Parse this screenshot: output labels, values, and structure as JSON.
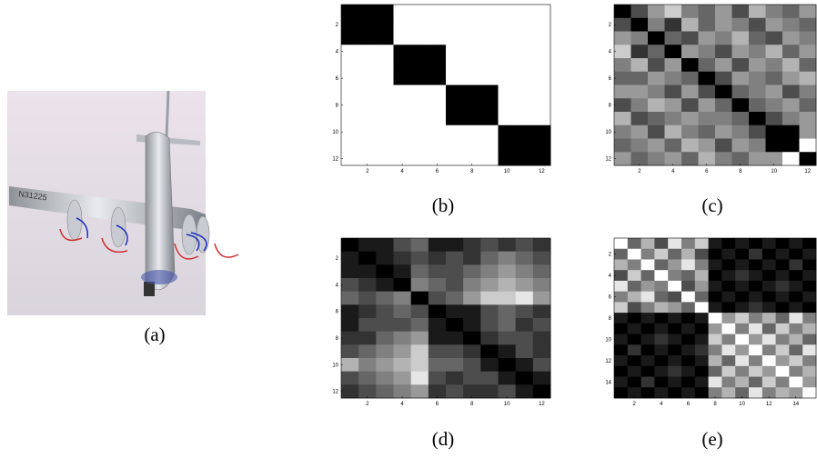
{
  "figure": {
    "colormap": "gray",
    "clim": [
      0,
      1
    ],
    "panels": [
      {
        "label": "(a)"
      },
      {
        "label": "(b)",
        "xticks": [
          2,
          4,
          6,
          8,
          10,
          12
        ],
        "yticks": [
          2,
          4,
          6,
          8,
          10,
          12
        ],
        "matrix": [
          [
            0,
            0,
            0,
            1,
            1,
            1,
            1,
            1,
            1,
            1,
            1,
            1
          ],
          [
            0,
            0,
            0,
            1,
            1,
            1,
            1,
            1,
            1,
            1,
            1,
            1
          ],
          [
            0,
            0,
            0,
            1,
            1,
            1,
            1,
            1,
            1,
            1,
            1,
            1
          ],
          [
            1,
            1,
            1,
            0,
            0,
            0,
            1,
            1,
            1,
            1,
            1,
            1
          ],
          [
            1,
            1,
            1,
            0,
            0,
            0,
            1,
            1,
            1,
            1,
            1,
            1
          ],
          [
            1,
            1,
            1,
            0,
            0,
            0,
            1,
            1,
            1,
            1,
            1,
            1
          ],
          [
            1,
            1,
            1,
            1,
            1,
            1,
            0,
            0,
            0,
            1,
            1,
            1
          ],
          [
            1,
            1,
            1,
            1,
            1,
            1,
            0,
            0,
            0,
            1,
            1,
            1
          ],
          [
            1,
            1,
            1,
            1,
            1,
            1,
            0,
            0,
            0,
            1,
            1,
            1
          ],
          [
            1,
            1,
            1,
            1,
            1,
            1,
            1,
            1,
            1,
            0,
            0,
            0
          ],
          [
            1,
            1,
            1,
            1,
            1,
            1,
            1,
            1,
            1,
            0,
            0,
            0
          ],
          [
            1,
            1,
            1,
            1,
            1,
            1,
            1,
            1,
            1,
            0,
            0,
            0
          ]
        ]
      },
      {
        "label": "(c)",
        "xticks": [
          2,
          4,
          6,
          8,
          10,
          12
        ],
        "yticks": [
          2,
          4,
          6,
          8,
          10,
          12
        ],
        "matrix": [
          [
            0,
            0.3,
            0.6,
            0.8,
            0.5,
            0.4,
            0.6,
            0.3,
            0.7,
            0.5,
            0.4,
            0.6
          ],
          [
            0.3,
            0,
            0.5,
            0.2,
            0.7,
            0.4,
            0.6,
            0.5,
            0.3,
            0.6,
            0.5,
            0.4
          ],
          [
            0.6,
            0.5,
            0,
            0.4,
            0.3,
            0.6,
            0.5,
            0.7,
            0.4,
            0.3,
            0.6,
            0.5
          ],
          [
            0.8,
            0.2,
            0.4,
            0,
            0.6,
            0.5,
            0.3,
            0.6,
            0.5,
            0.7,
            0.4,
            0.6
          ],
          [
            0.5,
            0.7,
            0.3,
            0.6,
            0,
            0.4,
            0.6,
            0.3,
            0.6,
            0.5,
            0.7,
            0.4
          ],
          [
            0.4,
            0.4,
            0.6,
            0.5,
            0.4,
            0,
            0.3,
            0.6,
            0.5,
            0.4,
            0.6,
            0.7
          ],
          [
            0.6,
            0.6,
            0.5,
            0.3,
            0.6,
            0.3,
            0,
            0.4,
            0.5,
            0.6,
            0.3,
            0.5
          ],
          [
            0.3,
            0.5,
            0.7,
            0.6,
            0.3,
            0.6,
            0.4,
            0,
            0.4,
            0.5,
            0.6,
            0.4
          ],
          [
            0.7,
            0.3,
            0.4,
            0.5,
            0.6,
            0.5,
            0.5,
            0.4,
            0,
            0.3,
            0.5,
            0.6
          ],
          [
            0.5,
            0.6,
            0.3,
            0.7,
            0.5,
            0.4,
            0.6,
            0.5,
            0.3,
            0,
            0,
            0.6
          ],
          [
            0.4,
            0.5,
            0.6,
            0.4,
            0.7,
            0.6,
            0.3,
            0.6,
            0.5,
            0,
            0,
            1
          ],
          [
            0.6,
            0.4,
            0.5,
            0.6,
            0.4,
            0.7,
            0.5,
            0.4,
            0.6,
            0.6,
            1,
            0
          ]
        ]
      },
      {
        "label": "(d)",
        "xticks": [
          2,
          4,
          6,
          8,
          10,
          12
        ],
        "yticks": [
          2,
          4,
          6,
          8,
          10,
          12
        ],
        "matrix": [
          [
            0,
            0.1,
            0.1,
            0.3,
            0.4,
            0.1,
            0.1,
            0.2,
            0.3,
            0.2,
            0.3,
            0.2
          ],
          [
            0.1,
            0,
            0.1,
            0.2,
            0.3,
            0.2,
            0.3,
            0.2,
            0.4,
            0.5,
            0.4,
            0.3
          ],
          [
            0.1,
            0.1,
            0,
            0.1,
            0.4,
            0.3,
            0.3,
            0.4,
            0.5,
            0.6,
            0.5,
            0.4
          ],
          [
            0.3,
            0.2,
            0.1,
            0,
            0.5,
            0.4,
            0.3,
            0.5,
            0.6,
            0.7,
            0.6,
            0.5
          ],
          [
            0.4,
            0.3,
            0.4,
            0.5,
            0,
            0.3,
            0.4,
            0.6,
            0.8,
            0.8,
            0.9,
            0.6
          ],
          [
            0.1,
            0.2,
            0.3,
            0.4,
            0.3,
            0,
            0.1,
            0.1,
            0.3,
            0.4,
            0.3,
            0.2
          ],
          [
            0.1,
            0.3,
            0.3,
            0.3,
            0.4,
            0.1,
            0,
            0.1,
            0.3,
            0.4,
            0.2,
            0.3
          ],
          [
            0.2,
            0.2,
            0.4,
            0.5,
            0.6,
            0.1,
            0.1,
            0,
            0.2,
            0.3,
            0.3,
            0.2
          ],
          [
            0.3,
            0.4,
            0.5,
            0.6,
            0.8,
            0.3,
            0.3,
            0.2,
            0,
            0.1,
            0.3,
            0.2
          ],
          [
            0.7,
            0.5,
            0.6,
            0.7,
            0.8,
            0.4,
            0.4,
            0.3,
            0.1,
            0,
            0.1,
            0.3
          ],
          [
            0.3,
            0.4,
            0.5,
            0.6,
            0.9,
            0.3,
            0.2,
            0.3,
            0.3,
            0.1,
            0,
            0.1
          ],
          [
            0.2,
            0.3,
            0.4,
            0.5,
            0.6,
            0.2,
            0.3,
            0.2,
            0.2,
            0.3,
            0.1,
            0
          ]
        ]
      },
      {
        "label": "(e)",
        "xticks": [
          2,
          4,
          6,
          8,
          10,
          12,
          14
        ],
        "yticks": [
          2,
          4,
          6,
          8,
          10,
          12,
          14
        ],
        "matrix": [
          [
            1,
            0.4,
            0.7,
            0.3,
            0.9,
            0.5,
            0.8,
            0.1,
            0,
            0.1,
            0,
            0.1,
            0,
            0.1,
            0
          ],
          [
            0.4,
            1,
            0.5,
            0.8,
            0.4,
            0.7,
            0.3,
            0,
            0.1,
            0,
            0.2,
            0,
            0.1,
            0,
            0.1
          ],
          [
            0.7,
            0.5,
            1,
            0.4,
            0.6,
            0.9,
            0.5,
            0.1,
            0,
            0.1,
            0,
            0.1,
            0,
            0.2,
            0
          ],
          [
            0.3,
            0.8,
            0.4,
            1,
            0.5,
            0.4,
            0.7,
            0,
            0.1,
            0.2,
            0.1,
            0,
            0.1,
            0,
            0.1
          ],
          [
            0.9,
            0.4,
            0.6,
            0.5,
            1,
            0.3,
            0.6,
            0.1,
            0,
            0.1,
            0,
            0.1,
            0.2,
            0.1,
            0
          ],
          [
            0.5,
            0.7,
            0.9,
            0.4,
            0.3,
            1,
            0.4,
            0,
            0.1,
            0,
            0.1,
            0,
            0.1,
            0,
            0.1
          ],
          [
            0.8,
            0.3,
            0.5,
            0.7,
            0.6,
            0.4,
            1,
            0.1,
            0,
            0.1,
            0.2,
            0.1,
            0,
            0.1,
            0
          ],
          [
            0.1,
            0,
            0.1,
            0,
            0.1,
            0,
            0.1,
            1,
            0.6,
            0.8,
            0.5,
            0.7,
            0.4,
            0.9,
            0.5
          ],
          [
            0,
            0.1,
            0,
            0.1,
            0,
            0.1,
            0,
            0.6,
            1,
            0.5,
            0.9,
            0.4,
            0.8,
            0.5,
            0.7
          ],
          [
            0.1,
            0,
            0.1,
            0.2,
            0.1,
            0,
            0.1,
            0.8,
            0.5,
            1,
            0.6,
            0.9,
            0.5,
            0.7,
            0.4
          ],
          [
            0,
            0.2,
            0,
            0.1,
            0,
            0.1,
            0.2,
            0.5,
            0.9,
            0.6,
            1,
            0.5,
            0.8,
            0.4,
            0.9
          ],
          [
            0.1,
            0,
            0.1,
            0,
            0.1,
            0,
            0.1,
            0.7,
            0.4,
            0.9,
            0.5,
            1,
            0.6,
            0.8,
            0.5
          ],
          [
            0,
            0.1,
            0,
            0.1,
            0.2,
            0.1,
            0,
            0.4,
            0.8,
            0.5,
            0.8,
            0.6,
            1,
            0.5,
            0.7
          ],
          [
            0.1,
            0,
            0.2,
            0,
            0.1,
            0,
            0.1,
            0.9,
            0.5,
            0.7,
            0.4,
            0.8,
            0.5,
            1,
            0.6
          ],
          [
            0,
            0.1,
            0,
            0.1,
            0,
            0.1,
            0,
            0.5,
            0.7,
            0.4,
            0.9,
            0.5,
            0.7,
            0.6,
            1
          ]
        ]
      }
    ]
  }
}
